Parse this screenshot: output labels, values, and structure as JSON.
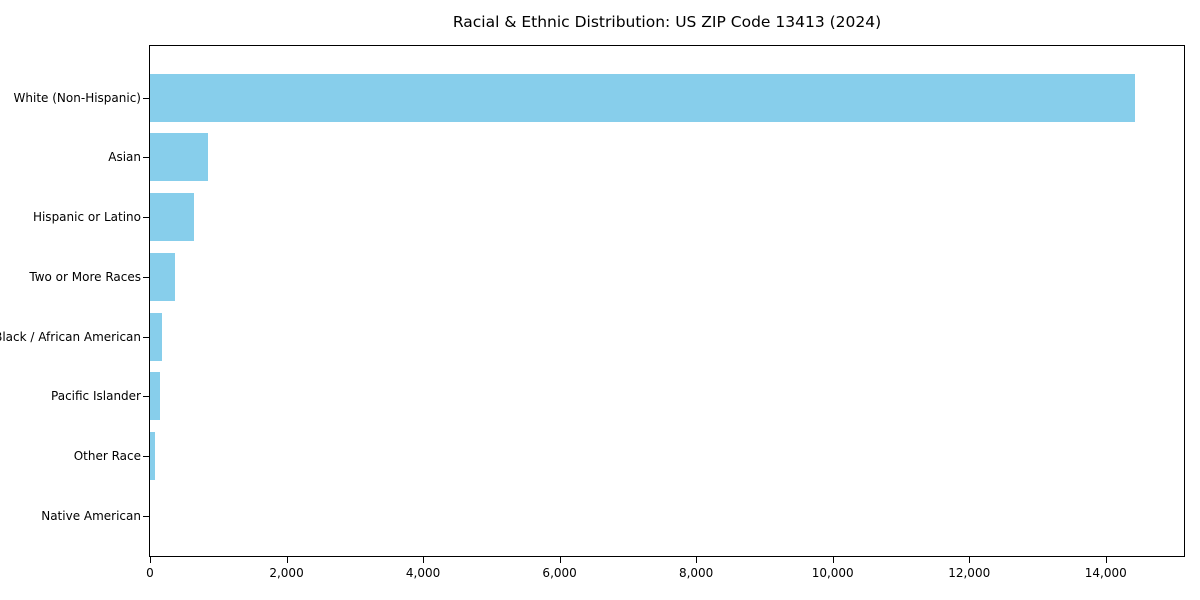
{
  "chart_data": {
    "type": "bar",
    "orientation": "horizontal",
    "title": "Racial & Ethnic Distribution: US ZIP Code 13413 (2024)",
    "categories": [
      "White (Non-Hispanic)",
      "Asian",
      "Hispanic or Latino",
      "Two or More Races",
      "Black / African American",
      "Pacific Islander",
      "Other Race",
      "Native American"
    ],
    "values": [
      14425,
      850,
      650,
      365,
      170,
      143,
      70,
      0
    ],
    "xlabel": "",
    "ylabel": "",
    "xlim": [
      0,
      15146
    ],
    "x_ticks": [
      0,
      2000,
      4000,
      6000,
      8000,
      10000,
      12000,
      14000
    ],
    "x_tick_labels": [
      "0",
      "2,000",
      "4,000",
      "6,000",
      "8,000",
      "10,000",
      "12,000",
      "14,000"
    ],
    "bar_color": "#87CEEB",
    "axis_color": "#000000",
    "text_color": "#000000",
    "background_color": "#ffffff",
    "grid": false,
    "legend": null
  }
}
